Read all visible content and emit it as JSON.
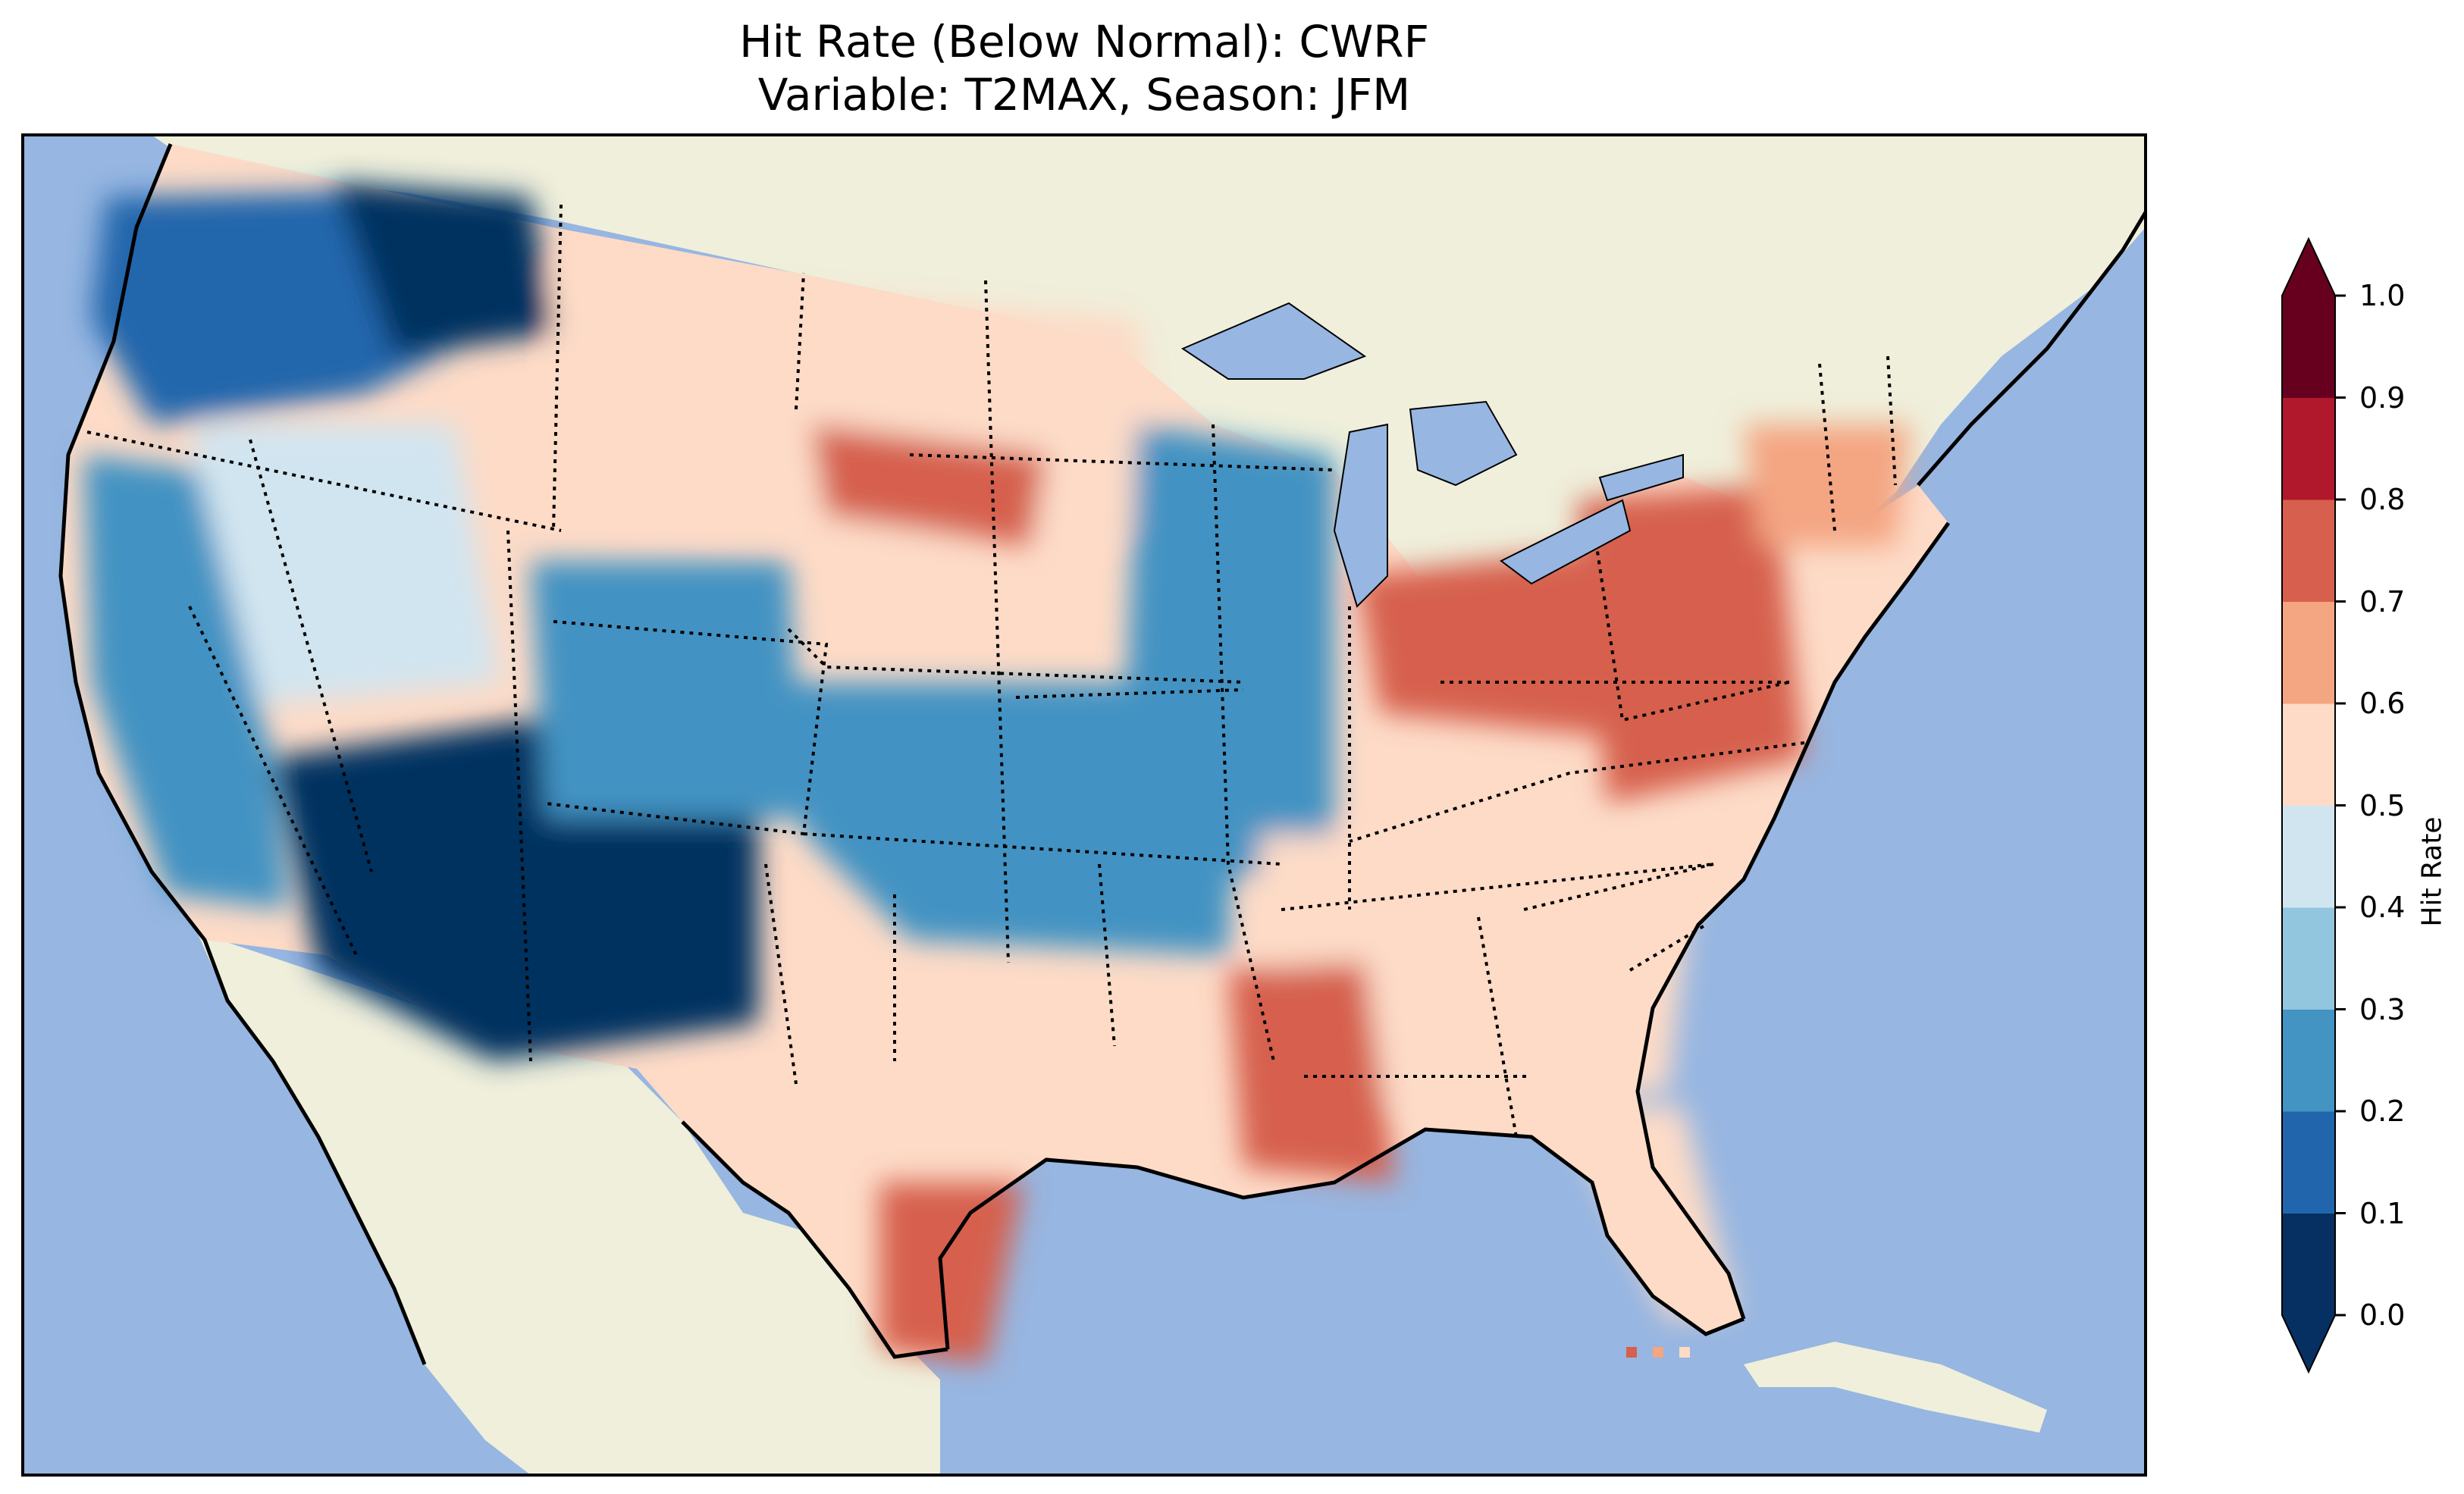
{
  "title": {
    "line1": "Hit Rate (Below Normal): CWRF",
    "line2": "Variable: T2MAX, Season: JFM"
  },
  "colorbar": {
    "label": "Hit Rate",
    "ticks": [
      "0.0",
      "0.1",
      "0.2",
      "0.3",
      "0.4",
      "0.5",
      "0.6",
      "0.7",
      "0.8",
      "0.9",
      "1.0"
    ],
    "colors": [
      "#053061",
      "#2166ac",
      "#4393c3",
      "#92c5de",
      "#d1e5f0",
      "#fddbc7",
      "#f4a582",
      "#d6604d",
      "#b2182b",
      "#67001f"
    ],
    "under_color": "#053061",
    "over_color": "#67001f"
  },
  "map": {
    "ocean_color": "#97b6e1",
    "land_color": "#efefdb",
    "regions": [
      {
        "name": "pacific-northwest",
        "value": 0.12
      },
      {
        "name": "northern-rockies",
        "value": 0.05
      },
      {
        "name": "great-basin",
        "value": 0.45
      },
      {
        "name": "california",
        "value": 0.25
      },
      {
        "name": "desert-southwest",
        "value": 0.05
      },
      {
        "name": "colorado-rockies",
        "value": 0.25
      },
      {
        "name": "central-plains",
        "value": 0.25
      },
      {
        "name": "upper-midwest",
        "value": 0.55
      },
      {
        "name": "dakotas-hotspot",
        "value": 0.75
      },
      {
        "name": "mississippi-valley",
        "value": 0.25
      },
      {
        "name": "ohio-valley",
        "value": 0.75
      },
      {
        "name": "mid-atlantic",
        "value": 0.75
      },
      {
        "name": "new-england",
        "value": 0.65
      },
      {
        "name": "southeast",
        "value": 0.55
      },
      {
        "name": "gulf-coast-hotspot",
        "value": 0.75
      },
      {
        "name": "south-texas",
        "value": 0.75
      },
      {
        "name": "florida",
        "value": 0.55
      }
    ]
  }
}
